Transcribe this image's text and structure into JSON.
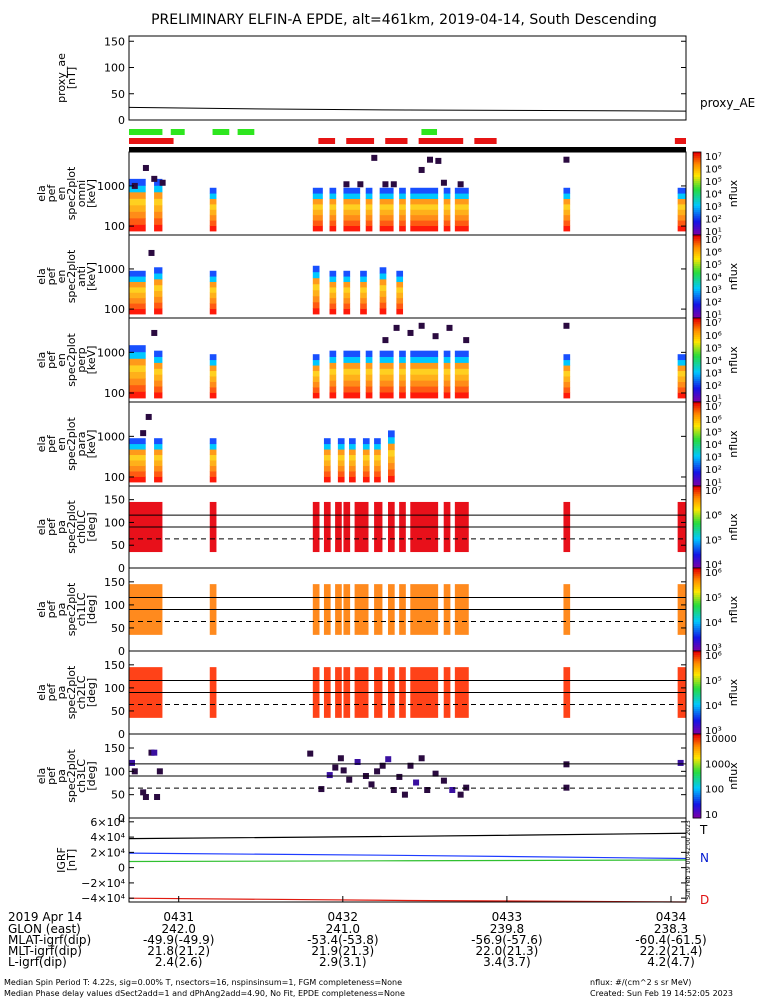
{
  "title": "PRELIMINARY ELFIN-A EPDE, alt=461km, 2019-04-14, South Descending",
  "colors": {
    "green_bar": "#2ee61f",
    "red_bar": "#e61414",
    "ch0": "#e8101a",
    "ch1": "#ff8a1e",
    "ch2": "#ff4218",
    "purple": "#2a0a40",
    "field_T": "#000000",
    "field_N": "#1e3cff",
    "field_green": "#30c030",
    "field_D": "#e01a10",
    "label_N": "#0018d0",
    "label_D": "#e01010"
  },
  "chart_data": [
    {
      "id": "proxy_ae",
      "type": "line",
      "ylabel": "proxy_ae [nT]",
      "ylim": [
        0,
        160
      ],
      "yticks": [
        "150",
        "100",
        "50",
        "0"
      ],
      "ytick_values": [
        150,
        100,
        50,
        0
      ],
      "legend": "proxy_AE",
      "x": [
        0,
        0.25,
        0.5,
        0.75,
        1.0
      ],
      "values": [
        24,
        21,
        19,
        18,
        17
      ]
    },
    {
      "id": "green_status",
      "type": "bar",
      "orientation": "horizontal",
      "segments": [
        [
          0.0,
          0.06
        ],
        [
          0.075,
          0.1
        ],
        [
          0.15,
          0.18
        ],
        [
          0.195,
          0.225
        ],
        [
          0.525,
          0.553
        ]
      ]
    },
    {
      "id": "red_status",
      "type": "bar",
      "orientation": "horizontal",
      "segments": [
        [
          0.0,
          0.08
        ],
        [
          0.34,
          0.37
        ],
        [
          0.39,
          0.44
        ],
        [
          0.46,
          0.5
        ],
        [
          0.52,
          0.6
        ],
        [
          0.62,
          0.66
        ],
        [
          0.98,
          1.0
        ]
      ]
    },
    {
      "id": "spec_omni",
      "type": "heatmap",
      "ylabel": "ela pef en spec2plot omni [keV]",
      "yticks": [
        "1000",
        "100"
      ],
      "ytick_values": [
        1000,
        100
      ],
      "ylim": [
        60,
        7000
      ],
      "cbar_labels": [
        "10⁷",
        "10⁶",
        "10⁵",
        "10⁴",
        "10³",
        "10²",
        "10¹"
      ],
      "cbar_values": [
        7,
        6,
        5,
        4,
        3,
        2,
        1
      ],
      "cbar_title": "nflux",
      "columns": [
        {
          "x": 0.0,
          "w": 0.03,
          "top": 1500
        },
        {
          "x": 0.045,
          "w": 0.015,
          "top": 1500
        },
        {
          "x": 0.145,
          "w": 0.012,
          "top": 900
        },
        {
          "x": 0.33,
          "w": 0.018,
          "top": 900
        },
        {
          "x": 0.36,
          "w": 0.012,
          "top": 900
        },
        {
          "x": 0.385,
          "w": 0.03,
          "top": 900
        },
        {
          "x": 0.425,
          "w": 0.012,
          "top": 900
        },
        {
          "x": 0.45,
          "w": 0.025,
          "top": 900
        },
        {
          "x": 0.485,
          "w": 0.012,
          "top": 900
        },
        {
          "x": 0.505,
          "w": 0.05,
          "top": 900
        },
        {
          "x": 0.565,
          "w": 0.012,
          "top": 900
        },
        {
          "x": 0.585,
          "w": 0.025,
          "top": 900
        },
        {
          "x": 0.78,
          "w": 0.012,
          "top": 900
        },
        {
          "x": 0.985,
          "w": 0.015,
          "top": 900
        }
      ],
      "dots": [
        [
          0.005,
          1000
        ],
        [
          0.025,
          2800
        ],
        [
          0.04,
          1500
        ],
        [
          0.055,
          1200
        ],
        [
          0.385,
          1100
        ],
        [
          0.41,
          1100
        ],
        [
          0.435,
          5000
        ],
        [
          0.455,
          1100
        ],
        [
          0.47,
          1100
        ],
        [
          0.52,
          2500
        ],
        [
          0.535,
          4500
        ],
        [
          0.55,
          4200
        ],
        [
          0.56,
          1200
        ],
        [
          0.59,
          1100
        ],
        [
          0.78,
          4500
        ]
      ]
    },
    {
      "id": "spec_anti",
      "type": "heatmap",
      "ylabel": "ela pef en spec2plot anti [keV]",
      "yticks": [
        "1000",
        "100"
      ],
      "ytick_values": [
        1000,
        100
      ],
      "ylim": [
        60,
        7000
      ],
      "cbar_labels": [
        "10⁷",
        "10⁶",
        "10⁵",
        "10⁴",
        "10³",
        "10²",
        "10¹"
      ],
      "cbar_values": [
        7,
        6,
        5,
        4,
        3,
        2,
        1
      ],
      "cbar_title": "nflux",
      "columns": [
        {
          "x": 0.0,
          "w": 0.03,
          "top": 900
        },
        {
          "x": 0.045,
          "w": 0.015,
          "top": 1100
        },
        {
          "x": 0.145,
          "w": 0.012,
          "top": 900
        },
        {
          "x": 0.33,
          "w": 0.012,
          "top": 1200
        },
        {
          "x": 0.36,
          "w": 0.012,
          "top": 900
        },
        {
          "x": 0.385,
          "w": 0.012,
          "top": 900
        },
        {
          "x": 0.415,
          "w": 0.012,
          "top": 900
        },
        {
          "x": 0.45,
          "w": 0.012,
          "top": 1100
        },
        {
          "x": 0.48,
          "w": 0.012,
          "top": 900
        }
      ],
      "dots": [
        [
          0.035,
          2500
        ]
      ]
    },
    {
      "id": "spec_perp",
      "type": "heatmap",
      "ylabel": "ela pef en spec2plot perp [keV]",
      "yticks": [
        "1000",
        "100"
      ],
      "ytick_values": [
        1000,
        100
      ],
      "ylim": [
        60,
        7000
      ],
      "cbar_labels": [
        "10⁷",
        "10⁶",
        "10⁵",
        "10⁴",
        "10³",
        "10²",
        "10¹"
      ],
      "cbar_values": [
        7,
        6,
        5,
        4,
        3,
        2,
        1
      ],
      "cbar_title": "nflux",
      "columns": [
        {
          "x": 0.0,
          "w": 0.03,
          "top": 1500
        },
        {
          "x": 0.045,
          "w": 0.015,
          "top": 1100
        },
        {
          "x": 0.145,
          "w": 0.012,
          "top": 900
        },
        {
          "x": 0.33,
          "w": 0.012,
          "top": 900
        },
        {
          "x": 0.36,
          "w": 0.012,
          "top": 1100
        },
        {
          "x": 0.385,
          "w": 0.03,
          "top": 1100
        },
        {
          "x": 0.425,
          "w": 0.012,
          "top": 1100
        },
        {
          "x": 0.45,
          "w": 0.025,
          "top": 1100
        },
        {
          "x": 0.485,
          "w": 0.012,
          "top": 1100
        },
        {
          "x": 0.505,
          "w": 0.05,
          "top": 1100
        },
        {
          "x": 0.565,
          "w": 0.012,
          "top": 1100
        },
        {
          "x": 0.585,
          "w": 0.025,
          "top": 1100
        },
        {
          "x": 0.78,
          "w": 0.012,
          "top": 900
        },
        {
          "x": 0.985,
          "w": 0.015,
          "top": 900
        }
      ],
      "dots": [
        [
          0.04,
          3000
        ],
        [
          0.455,
          2000
        ],
        [
          0.475,
          4000
        ],
        [
          0.5,
          3000
        ],
        [
          0.52,
          4500
        ],
        [
          0.545,
          2500
        ],
        [
          0.57,
          4000
        ],
        [
          0.6,
          2000
        ],
        [
          0.78,
          4500
        ]
      ]
    },
    {
      "id": "spec_para",
      "type": "heatmap",
      "ylabel": "ela pef en spec2plot para [keV]",
      "yticks": [
        "1000",
        "100"
      ],
      "ytick_values": [
        1000,
        100
      ],
      "ylim": [
        60,
        7000
      ],
      "cbar_labels": [
        "10⁷",
        "10⁶",
        "10⁵",
        "10⁴",
        "10³",
        "10²",
        "10¹"
      ],
      "cbar_values": [
        7,
        6,
        5,
        4,
        3,
        2,
        1
      ],
      "cbar_title": "nflux",
      "columns": [
        {
          "x": 0.0,
          "w": 0.03,
          "top": 900
        },
        {
          "x": 0.045,
          "w": 0.015,
          "top": 900
        },
        {
          "x": 0.145,
          "w": 0.012,
          "top": 900
        },
        {
          "x": 0.35,
          "w": 0.012,
          "top": 900
        },
        {
          "x": 0.375,
          "w": 0.012,
          "top": 900
        },
        {
          "x": 0.395,
          "w": 0.012,
          "top": 900
        },
        {
          "x": 0.42,
          "w": 0.012,
          "top": 900
        },
        {
          "x": 0.44,
          "w": 0.012,
          "top": 900
        },
        {
          "x": 0.465,
          "w": 0.012,
          "top": 1400
        }
      ],
      "dots": [
        [
          0.02,
          1200
        ],
        [
          0.03,
          3000
        ]
      ]
    },
    {
      "id": "pa_ch0",
      "type": "heatmap",
      "ylabel": "ela pef pa spec2plot ch0LC [deg]",
      "yticks": [
        "150",
        "100",
        "50",
        "0"
      ],
      "ytick_values": [
        150,
        100,
        50,
        0
      ],
      "ylim": [
        0,
        180
      ],
      "cbar_labels": [
        "10⁷",
        "10⁶",
        "10⁵",
        "10⁴"
      ],
      "cbar_values": [
        7,
        6,
        5,
        4
      ],
      "cbar_title": "nflux",
      "hlines": [
        116,
        90
      ],
      "dashed": 64,
      "columns": [
        {
          "x": 0.0,
          "w": 0.06
        },
        {
          "x": 0.145,
          "w": 0.012
        },
        {
          "x": 0.33,
          "w": 0.012
        },
        {
          "x": 0.35,
          "w": 0.012
        },
        {
          "x": 0.37,
          "w": 0.012
        },
        {
          "x": 0.385,
          "w": 0.012
        },
        {
          "x": 0.405,
          "w": 0.025
        },
        {
          "x": 0.44,
          "w": 0.015
        },
        {
          "x": 0.465,
          "w": 0.012
        },
        {
          "x": 0.485,
          "w": 0.012
        },
        {
          "x": 0.505,
          "w": 0.05
        },
        {
          "x": 0.565,
          "w": 0.012
        },
        {
          "x": 0.585,
          "w": 0.025
        },
        {
          "x": 0.78,
          "w": 0.012
        },
        {
          "x": 0.985,
          "w": 0.015
        }
      ],
      "col_range": [
        35,
        145
      ]
    },
    {
      "id": "pa_ch1",
      "type": "heatmap",
      "ylabel": "ela pef pa spec2plot ch1LC [deg]",
      "yticks": [
        "150",
        "100",
        "50",
        "0"
      ],
      "ytick_values": [
        150,
        100,
        50,
        0
      ],
      "ylim": [
        0,
        180
      ],
      "cbar_labels": [
        "10⁶",
        "10⁵",
        "10⁴",
        "10³"
      ],
      "cbar_values": [
        6,
        5,
        4,
        3
      ],
      "cbar_title": "nflux",
      "hlines": [
        116,
        90
      ],
      "dashed": 64,
      "columns": [
        {
          "x": 0.0,
          "w": 0.06
        },
        {
          "x": 0.145,
          "w": 0.012
        },
        {
          "x": 0.33,
          "w": 0.012
        },
        {
          "x": 0.35,
          "w": 0.012
        },
        {
          "x": 0.37,
          "w": 0.012
        },
        {
          "x": 0.385,
          "w": 0.012
        },
        {
          "x": 0.405,
          "w": 0.025
        },
        {
          "x": 0.44,
          "w": 0.015
        },
        {
          "x": 0.465,
          "w": 0.012
        },
        {
          "x": 0.485,
          "w": 0.012
        },
        {
          "x": 0.505,
          "w": 0.05
        },
        {
          "x": 0.565,
          "w": 0.012
        },
        {
          "x": 0.585,
          "w": 0.025
        },
        {
          "x": 0.78,
          "w": 0.012
        },
        {
          "x": 0.985,
          "w": 0.015
        }
      ],
      "col_range": [
        35,
        145
      ]
    },
    {
      "id": "pa_ch2",
      "type": "heatmap",
      "ylabel": "ela pef pa spec2plot ch2LC [deg]",
      "yticks": [
        "150",
        "100",
        "50",
        "0"
      ],
      "ytick_values": [
        150,
        100,
        50,
        0
      ],
      "ylim": [
        0,
        180
      ],
      "cbar_labels": [
        "10⁶",
        "10⁵",
        "10⁴",
        "10³"
      ],
      "cbar_values": [
        6,
        5,
        4,
        3
      ],
      "cbar_title": "nflux",
      "hlines": [
        116,
        90
      ],
      "dashed": 64,
      "columns": [
        {
          "x": 0.0,
          "w": 0.06
        },
        {
          "x": 0.145,
          "w": 0.012
        },
        {
          "x": 0.33,
          "w": 0.012
        },
        {
          "x": 0.35,
          "w": 0.012
        },
        {
          "x": 0.37,
          "w": 0.012
        },
        {
          "x": 0.385,
          "w": 0.012
        },
        {
          "x": 0.405,
          "w": 0.025
        },
        {
          "x": 0.44,
          "w": 0.015
        },
        {
          "x": 0.465,
          "w": 0.012
        },
        {
          "x": 0.485,
          "w": 0.012
        },
        {
          "x": 0.505,
          "w": 0.05
        },
        {
          "x": 0.565,
          "w": 0.012
        },
        {
          "x": 0.585,
          "w": 0.025
        },
        {
          "x": 0.78,
          "w": 0.012
        },
        {
          "x": 0.985,
          "w": 0.015
        }
      ],
      "col_range": [
        35,
        145
      ]
    },
    {
      "id": "pa_ch3",
      "type": "scatter",
      "ylabel": "ela pef pa spec2plot ch3LC [deg]",
      "yticks": [
        "150",
        "100",
        "50",
        "0"
      ],
      "ytick_values": [
        150,
        100,
        50,
        0
      ],
      "ylim": [
        0,
        180
      ],
      "cbar_labels": [
        "10000",
        "1000",
        "100",
        "10"
      ],
      "cbar_values": [
        4,
        3,
        2,
        1
      ],
      "cbar_title": "nflux",
      "hlines": [
        116,
        90
      ],
      "dashed": 64,
      "dots": [
        [
          0.0,
          118
        ],
        [
          0.005,
          100
        ],
        [
          0.02,
          55
        ],
        [
          0.025,
          45
        ],
        [
          0.035,
          140
        ],
        [
          0.04,
          140
        ],
        [
          0.045,
          45
        ],
        [
          0.05,
          100
        ],
        [
          0.32,
          138
        ],
        [
          0.34,
          62
        ],
        [
          0.355,
          92
        ],
        [
          0.365,
          108
        ],
        [
          0.375,
          128
        ],
        [
          0.38,
          102
        ],
        [
          0.39,
          82
        ],
        [
          0.405,
          120
        ],
        [
          0.42,
          90
        ],
        [
          0.43,
          72
        ],
        [
          0.44,
          100
        ],
        [
          0.45,
          112
        ],
        [
          0.46,
          126
        ],
        [
          0.47,
          60
        ],
        [
          0.48,
          88
        ],
        [
          0.49,
          50
        ],
        [
          0.5,
          112
        ],
        [
          0.51,
          76
        ],
        [
          0.52,
          128
        ],
        [
          0.53,
          60
        ],
        [
          0.545,
          95
        ],
        [
          0.56,
          80
        ],
        [
          0.575,
          60
        ],
        [
          0.59,
          50
        ],
        [
          0.6,
          65
        ],
        [
          0.78,
          115
        ],
        [
          0.78,
          65
        ],
        [
          0.985,
          118
        ]
      ]
    },
    {
      "id": "igrf",
      "type": "line",
      "ylabel": "IGRF [nT]",
      "yticks": [
        "6×10⁴",
        "4×10⁴",
        "2×10⁴",
        "0",
        "−2×10⁴",
        "−4×10⁴"
      ],
      "ytick_values": [
        60000,
        40000,
        20000,
        0,
        -20000,
        -40000
      ],
      "ylim": [
        -45000,
        65000
      ],
      "series": [
        {
          "name": "T",
          "x": [
            0,
            0.5,
            1
          ],
          "values": [
            38000,
            41000,
            45000
          ]
        },
        {
          "name": "N",
          "x": [
            0,
            0.5,
            1
          ],
          "values": [
            19000,
            16000,
            12000
          ]
        },
        {
          "x": [
            0,
            0.5,
            1
          ],
          "values": [
            8000,
            9000,
            10000
          ]
        },
        {
          "name": "D",
          "x": [
            0,
            0.5,
            1
          ],
          "values": [
            -40000,
            -43000,
            -45000
          ]
        }
      ],
      "side_text": "Sun Feb 19 00:42:00 2023"
    }
  ],
  "axis": {
    "date": "2019 Apr 14",
    "ticks": [
      "0431",
      "0432",
      "0433",
      "0434"
    ],
    "rows": [
      {
        "label": "GLON (east)",
        "values": [
          "242.0",
          "241.0",
          "239.8",
          "238.3"
        ]
      },
      {
        "label": "MLAT-igrf(dip)",
        "values": [
          "-49.9(-49.9)",
          "-53.4(-53.8)",
          "-56.9(-57.6)",
          "-60.4(-61.5)"
        ]
      },
      {
        "label": "MLT-igrf(dip)",
        "values": [
          "21.8(21.2)",
          "21.9(21.3)",
          "22.0(21.3)",
          "22.2(21.4)"
        ]
      },
      {
        "label": "L-igrf(dip)",
        "values": [
          "2.4(2.6)",
          "2.9(3.1)",
          "3.4(3.7)",
          "4.2(4.7)"
        ]
      }
    ]
  },
  "footer": {
    "line1": "Median Spin Period T: 4.22s, sig=0.00% T, nsectors=16, nspinsinsum=1, FGM completeness=None",
    "line2": "Median Phase delay values dSect2add=1 and dPhAng2add=4.90, No Fit, EPDE completeness=None",
    "units": "nflux: #/(cm^2 s sr MeV)",
    "created": "Created: Sun Feb 19 14:52:05 2023"
  }
}
